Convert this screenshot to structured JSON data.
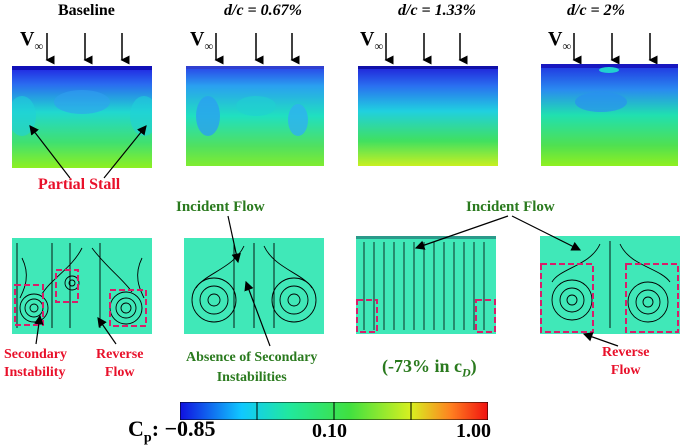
{
  "columns": [
    {
      "title": "Baseline"
    },
    {
      "title": "d/c = 0.67%"
    },
    {
      "title": "d/c = 1.33%"
    },
    {
      "title": "d/c = 2%"
    }
  ],
  "freestream_symbol": "V",
  "freestream_subscript": "∞",
  "annotations": {
    "partial_stall": "Partial Stall",
    "incident_flow_left": "Incident Flow",
    "incident_flow_right": "Incident Flow",
    "secondary_instability": "Secondary\nInstability",
    "reverse_flow_left": "Reverse\nFlow",
    "absence_secondary": "Absence of Secondary\nInstabilities",
    "drag_reduction": "(-73% in c",
    "drag_reduction_sub": "D",
    "drag_reduction_end": ")",
    "reverse_flow_right": "Reverse\nFlow"
  },
  "colorbar": {
    "label": "C",
    "label_sub": "p",
    "label_suffix": ": −0.85",
    "mid_tick": "0.10",
    "max_tick": "1.00",
    "colors": [
      "#1010e0",
      "#10c8ff",
      "#20e8a0",
      "#40e040",
      "#d8f020",
      "#ff8020",
      "#f01010"
    ]
  }
}
